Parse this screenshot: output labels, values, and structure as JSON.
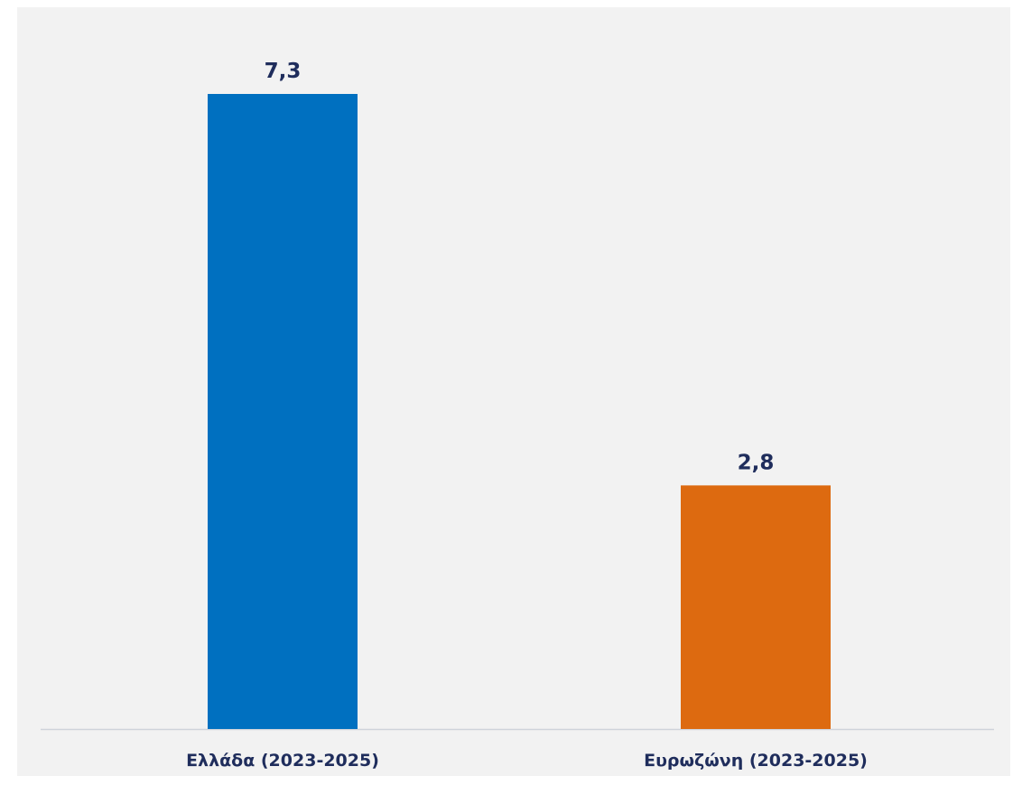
{
  "chart_data": {
    "type": "bar",
    "categories": [
      "Ελλάδα (2023-2025)",
      "Ευρωζώνη (2023-2025)"
    ],
    "values": [
      7.3,
      2.8
    ],
    "value_labels": [
      "7,3",
      "2,8"
    ],
    "colors": [
      "#0070c0",
      "#dd6a10"
    ],
    "ylim": [
      0,
      8
    ],
    "grid": false,
    "legend": "none"
  }
}
